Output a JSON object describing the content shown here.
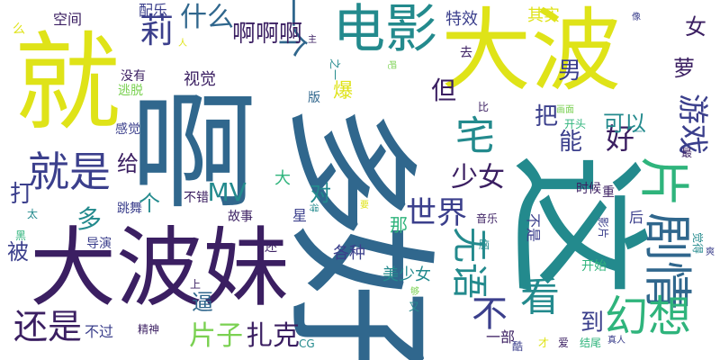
{
  "palette": {
    "purple": "#3b1f62",
    "indigo": "#3b3f8c",
    "blue": "#30678d",
    "teal": "#238a8d",
    "green": "#2fb47c",
    "lime": "#7ad151",
    "yellow": "#dfe318"
  },
  "words": [
    {
      "text": "就",
      "color": "yellow",
      "rotate": false
    },
    {
      "text": "啊",
      "color": "blue",
      "rotate": false
    },
    {
      "text": "大波",
      "color": "yellow",
      "rotate": false
    },
    {
      "text": "大波妹",
      "color": "purple",
      "rotate": false
    },
    {
      "text": "好",
      "color": "blue",
      "rotate": true
    },
    {
      "text": "这",
      "color": "teal",
      "rotate": true
    },
    {
      "text": "多",
      "color": "blue",
      "rotate": true
    },
    {
      "text": "电影",
      "color": "teal",
      "rotate": false
    },
    {
      "text": "剧情",
      "color": "blue",
      "rotate": true
    },
    {
      "text": "片",
      "color": "green",
      "rotate": true
    },
    {
      "text": "就是",
      "color": "indigo",
      "rotate": false
    },
    {
      "text": "还是",
      "color": "purple",
      "rotate": false
    },
    {
      "text": "一个",
      "color": "blue",
      "rotate": true
    },
    {
      "text": "莉",
      "color": "indigo",
      "rotate": false
    },
    {
      "text": "什么",
      "color": "blue",
      "rotate": false
    },
    {
      "text": "宅",
      "color": "teal",
      "rotate": false
    },
    {
      "text": "啊啊啊",
      "color": "purple",
      "rotate": false
    },
    {
      "text": "看",
      "color": "teal",
      "rotate": false
    },
    {
      "text": "幻想",
      "color": "green",
      "rotate": false
    },
    {
      "text": "片子",
      "color": "lime",
      "rotate": false
    },
    {
      "text": "扎克",
      "color": "purple",
      "rotate": false
    },
    {
      "text": "无语",
      "color": "teal",
      "rotate": true
    },
    {
      "text": "世界",
      "color": "indigo",
      "rotate": false
    },
    {
      "text": "不",
      "color": "indigo",
      "rotate": false
    },
    {
      "text": "但",
      "color": "purple",
      "rotate": false
    },
    {
      "text": "好",
      "color": "purple",
      "rotate": false
    },
    {
      "text": "男",
      "color": "indigo",
      "rotate": false
    },
    {
      "text": "能",
      "color": "indigo",
      "rotate": false
    },
    {
      "text": "把",
      "color": "indigo",
      "rotate": false
    },
    {
      "text": "MV",
      "color": "teal",
      "rotate": false
    },
    {
      "text": "少女",
      "color": "purple",
      "rotate": false
    },
    {
      "text": "游戏",
      "color": "indigo",
      "rotate": true
    },
    {
      "text": "女",
      "color": "purple",
      "rotate": false
    },
    {
      "text": "萝",
      "color": "purple",
      "rotate": false
    },
    {
      "text": "打",
      "color": "indigo",
      "rotate": false
    },
    {
      "text": "被",
      "color": "indigo",
      "rotate": false
    },
    {
      "text": "逼",
      "color": "blue",
      "rotate": false
    },
    {
      "text": "到",
      "color": "indigo",
      "rotate": false
    },
    {
      "text": "可以",
      "color": "teal",
      "rotate": false
    },
    {
      "text": "给",
      "color": "purple",
      "rotate": false
    },
    {
      "text": "多",
      "color": "teal",
      "rotate": false
    },
    {
      "text": "个",
      "color": "teal",
      "rotate": false
    },
    {
      "text": "对",
      "color": "teal",
      "rotate": false
    },
    {
      "text": "大",
      "color": "green",
      "rotate": false
    },
    {
      "text": "各种",
      "color": "indigo",
      "rotate": false
    },
    {
      "text": "那",
      "color": "green",
      "rotate": false
    },
    {
      "text": "美少女",
      "color": "teal",
      "rotate": false
    },
    {
      "text": "爆",
      "color": "yellow",
      "rotate": false
    },
    {
      "text": "视觉",
      "color": "purple",
      "rotate": false
    },
    {
      "text": "特效",
      "color": "indigo",
      "rotate": false
    },
    {
      "text": "其实",
      "color": "yellow",
      "rotate": false
    },
    {
      "text": "配乐",
      "color": "indigo",
      "rotate": false
    },
    {
      "text": "空间",
      "color": "purple",
      "rotate": false
    },
    {
      "text": "么",
      "color": "yellow",
      "rotate": false
    },
    {
      "text": "没有",
      "color": "purple",
      "rotate": false
    },
    {
      "text": "逃脱",
      "color": "lime",
      "rotate": false
    },
    {
      "text": "感觉",
      "color": "indigo",
      "rotate": false
    },
    {
      "text": "人",
      "color": "yellow",
      "rotate": false
    },
    {
      "text": "主",
      "color": "purple",
      "rotate": false
    },
    {
      "text": "之一",
      "color": "teal",
      "rotate": true
    },
    {
      "text": "吧",
      "color": "lime",
      "rotate": true
    },
    {
      "text": "去",
      "color": "purple",
      "rotate": false
    },
    {
      "text": "像",
      "color": "indigo",
      "rotate": false
    },
    {
      "text": "版",
      "color": "blue",
      "rotate": false
    },
    {
      "text": "比",
      "color": "purple",
      "rotate": false
    },
    {
      "text": "开头",
      "color": "green",
      "rotate": false
    },
    {
      "text": "画面",
      "color": "lime",
      "rotate": false
    },
    {
      "text": "一",
      "color": "teal",
      "rotate": false
    },
    {
      "text": "最",
      "color": "purple",
      "rotate": false
    },
    {
      "text": "时候",
      "color": "purple",
      "rotate": false
    },
    {
      "text": "重",
      "color": "purple",
      "rotate": false
    },
    {
      "text": "不错",
      "color": "purple",
      "rotate": false
    },
    {
      "text": "跳舞",
      "color": "indigo",
      "rotate": false
    },
    {
      "text": "太",
      "color": "teal",
      "rotate": false
    },
    {
      "text": "故事",
      "color": "purple",
      "rotate": false
    },
    {
      "text": "星",
      "color": "indigo",
      "rotate": false
    },
    {
      "text": "得",
      "color": "teal",
      "rotate": true
    },
    {
      "text": "要",
      "color": "yellow",
      "rotate": false
    },
    {
      "text": "音乐",
      "color": "purple",
      "rotate": false
    },
    {
      "text": "不是",
      "color": "indigo",
      "rotate": true
    },
    {
      "text": "后",
      "color": "indigo",
      "rotate": false
    },
    {
      "text": "影片",
      "color": "indigo",
      "rotate": true
    },
    {
      "text": "觉得",
      "color": "teal",
      "rotate": true
    },
    {
      "text": "爽",
      "color": "indigo",
      "rotate": false
    },
    {
      "text": "黑",
      "color": "green",
      "rotate": false
    },
    {
      "text": "导演",
      "color": "indigo",
      "rotate": false
    },
    {
      "text": "还",
      "color": "purple",
      "rotate": false
    },
    {
      "text": "脑",
      "color": "teal",
      "rotate": false
    },
    {
      "text": "开始",
      "color": "green",
      "rotate": false
    },
    {
      "text": "上",
      "color": "purple",
      "rotate": false
    },
    {
      "text": "够",
      "color": "lime",
      "rotate": false
    },
    {
      "text": "又",
      "color": "teal",
      "rotate": false
    },
    {
      "text": "一部",
      "color": "purple",
      "rotate": false
    },
    {
      "text": "不过",
      "color": "indigo",
      "rotate": false
    },
    {
      "text": "精神",
      "color": "purple",
      "rotate": false
    },
    {
      "text": "CG",
      "color": "teal",
      "rotate": false
    },
    {
      "text": "酷",
      "color": "indigo",
      "rotate": false
    },
    {
      "text": "才",
      "color": "yellow",
      "rotate": false
    },
    {
      "text": "爱",
      "color": "purple",
      "rotate": false
    },
    {
      "text": "结尾",
      "color": "green",
      "rotate": false
    },
    {
      "text": "真人",
      "color": "indigo",
      "rotate": false
    }
  ]
}
